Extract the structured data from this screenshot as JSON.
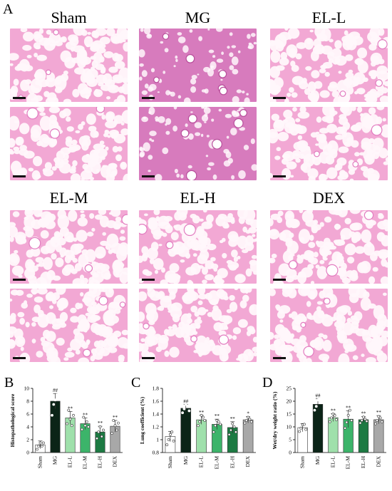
{
  "figure": {
    "panel_a_letter": "A",
    "panel_b_letter": "B",
    "panel_c_letter": "C",
    "panel_d_letter": "D"
  },
  "histology": {
    "groups": [
      {
        "label": "Sham",
        "stain": "light"
      },
      {
        "label": "MG",
        "stain": "dense"
      },
      {
        "label": "EL-L",
        "stain": "light"
      },
      {
        "label": "EL-M",
        "stain": "light"
      },
      {
        "label": "EL-H",
        "stain": "light"
      },
      {
        "label": "DEX",
        "stain": "light"
      }
    ]
  },
  "colors": {
    "sham": "#ffffff",
    "mg": "#0b2417",
    "el_l": "#9fe0ab",
    "el_m": "#3cb46a",
    "el_h": "#1d7a43",
    "dex": "#a8a8a8",
    "tissue_light": "#f2a8d4",
    "tissue_dense": "#d77bbd"
  },
  "chart_data": [
    {
      "type": "bar",
      "panel": "B",
      "categories": [
        "Sham",
        "MG",
        "EL-L",
        "EL-M",
        "EL-H",
        "DEX"
      ],
      "values": [
        1.2,
        8.0,
        5.4,
        4.5,
        3.2,
        4.1
      ],
      "errors": [
        0.6,
        1.2,
        1.0,
        0.9,
        0.9,
        0.9
      ],
      "points": [
        [
          0.5,
          1.0,
          1.5,
          1.0,
          1.5
        ],
        [
          5.8,
          7.5,
          8.2,
          9.0,
          8.8
        ],
        [
          4.5,
          6.6,
          5.2,
          4.2,
          5.8
        ],
        [
          3.6,
          5.5,
          4.2,
          4.8,
          4.0
        ],
        [
          2.2,
          3.2,
          4.0,
          2.5,
          3.5
        ],
        [
          3.0,
          5.0,
          4.2,
          3.5,
          4.6
        ]
      ],
      "annotations": [
        "",
        "##",
        "**",
        "**",
        "**",
        "**"
      ],
      "ylabel": "Histopathological score",
      "ylim": [
        0,
        10
      ],
      "yticks": [
        0,
        2,
        4,
        6,
        8,
        10
      ]
    },
    {
      "type": "bar",
      "panel": "C",
      "categories": [
        "Sham",
        "MG",
        "EL-L",
        "EL-M",
        "EL-H",
        "DEX"
      ],
      "values": [
        1.05,
        1.49,
        1.31,
        1.24,
        1.19,
        1.31
      ],
      "errors": [
        0.08,
        0.06,
        0.07,
        0.08,
        0.09,
        0.05
      ],
      "points": [
        [
          0.92,
          1.0,
          1.08,
          1.12,
          0.98
        ],
        [
          1.42,
          1.48,
          1.55,
          1.52,
          1.45
        ],
        [
          1.22,
          1.28,
          1.38,
          1.35,
          1.3
        ],
        [
          1.12,
          1.22,
          1.3,
          1.28,
          1.24
        ],
        [
          1.08,
          1.15,
          1.25,
          1.2,
          1.12
        ],
        [
          1.26,
          1.3,
          1.35,
          1.32,
          1.28
        ]
      ],
      "annotations": [
        "",
        "##",
        "**",
        "**",
        "**",
        "*"
      ],
      "ylabel": "Lung coefficient (%)",
      "ylim": [
        0.8,
        1.8
      ],
      "yticks": [
        0.8,
        1.0,
        1.2,
        1.4,
        1.6,
        1.8
      ]
    },
    {
      "type": "bar",
      "panel": "D",
      "categories": [
        "Sham",
        "MG",
        "EL-L",
        "EL-M",
        "EL-H",
        "DEX"
      ],
      "values": [
        9.7,
        18.8,
        13.6,
        13.0,
        12.8,
        12.8
      ],
      "errors": [
        1.6,
        2.2,
        1.5,
        3.3,
        1.2,
        1.6
      ],
      "points": [
        [
          8.2,
          9.5,
          10.8,
          11.0,
          9.0
        ],
        [
          16.5,
          18.0,
          20.5,
          21.0,
          19.5
        ],
        [
          12.0,
          13.5,
          15.0,
          14.5,
          12.8
        ],
        [
          9.5,
          11.8,
          14.5,
          16.5,
          12.5
        ],
        [
          11.5,
          12.5,
          13.8,
          13.0,
          12.2
        ],
        [
          11.2,
          12.5,
          14.0,
          13.5,
          12.0
        ]
      ],
      "annotations": [
        "",
        "##",
        "**",
        "**",
        "**",
        "**"
      ],
      "ylabel": "Wet/dry weight ratio (%)",
      "ylim": [
        0,
        25
      ],
      "yticks": [
        0,
        5,
        10,
        15,
        20,
        25
      ]
    }
  ]
}
